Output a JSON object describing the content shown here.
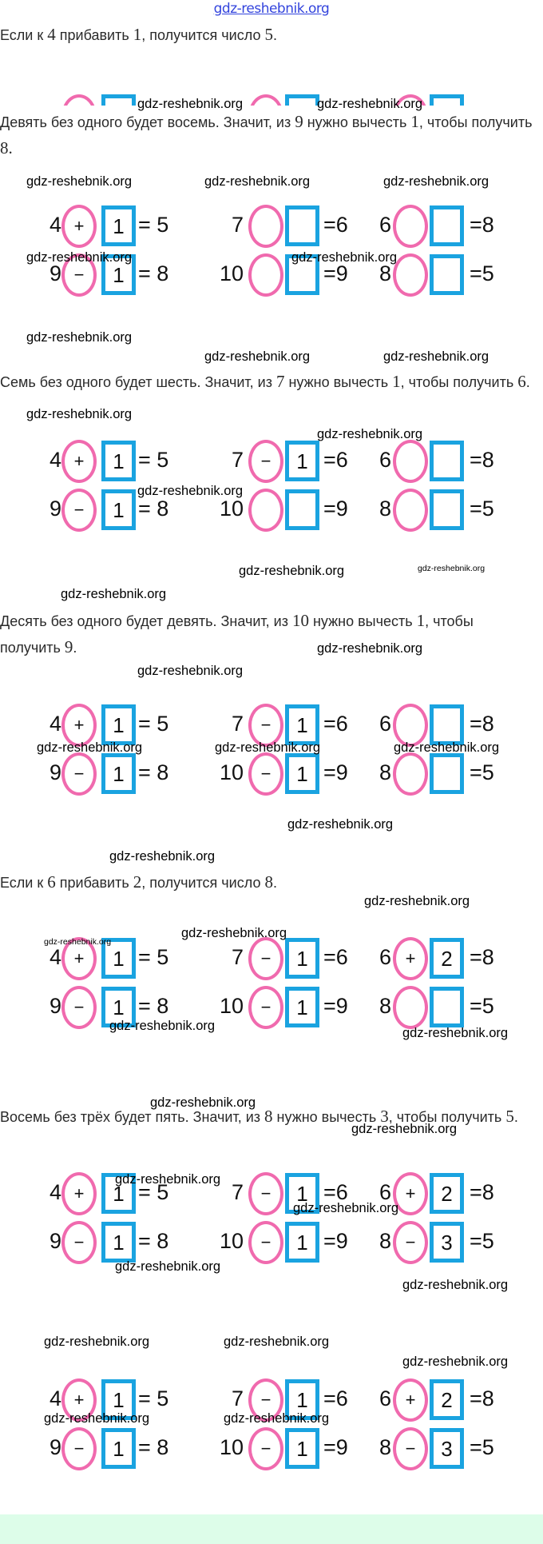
{
  "header": {
    "watermark": "gdz-reshebnik.org",
    "watermark_color": "#3344dd"
  },
  "watermark": "gdz-reshebnik.org",
  "colors": {
    "circle": "#f06aae",
    "square": "#1aa3e0",
    "footer": "#ddfde9"
  },
  "lines": [
    [
      {
        "t": "Если к "
      },
      {
        "t": "4",
        "m": 1
      },
      {
        "t": " прибавить "
      },
      {
        "t": "1",
        "m": 1
      },
      {
        "t": ", получится число "
      },
      {
        "t": "5",
        "m": 1
      },
      {
        "t": "."
      }
    ],
    [
      {
        "t": "Девять без одного будет восемь. Значит, из "
      },
      {
        "t": "9",
        "m": 1
      },
      {
        "t": " нужно вычесть "
      },
      {
        "t": "1",
        "m": 1
      },
      {
        "t": ", чтобы получить"
      }
    ],
    [
      {
        "t": "8.",
        "m": 1
      }
    ],
    [
      {
        "t": "Семь без одного будет шесть. Значит, из "
      },
      {
        "t": "7",
        "m": 1
      },
      {
        "t": " нужно вычесть "
      },
      {
        "t": "1",
        "m": 1
      },
      {
        "t": ", чтобы получить "
      },
      {
        "t": "6",
        "m": 1
      },
      {
        "t": "."
      }
    ],
    [
      {
        "t": "Десять без одного будет девять. Значит, из "
      },
      {
        "t": "10",
        "m": 1
      },
      {
        "t": " нужно вычесть "
      },
      {
        "t": "1",
        "m": 1
      },
      {
        "t": ", чтобы"
      }
    ],
    [
      {
        "t": "получить "
      },
      {
        "t": "9",
        "m": 1
      },
      {
        "t": "."
      }
    ],
    [
      {
        "t": "Если к "
      },
      {
        "t": "6",
        "m": 1
      },
      {
        "t": " прибавить "
      },
      {
        "t": "2",
        "m": 1
      },
      {
        "t": ", получится число "
      },
      {
        "t": "8",
        "m": 1
      },
      {
        "t": "."
      }
    ],
    [
      {
        "t": "Восемь без трёх будет пять. Значит, из "
      },
      {
        "t": "8",
        "m": 1
      },
      {
        "t": " нужно вычесть "
      },
      {
        "t": "3",
        "m": 1
      },
      {
        "t": ", чтобы получить "
      },
      {
        "t": "5",
        "m": 1
      },
      {
        "t": "."
      }
    ]
  ],
  "blocks": [
    [
      {
        "a": "4",
        "op": "+",
        "b": "1",
        "r": "= 5"
      },
      {
        "a": "7",
        "op": "",
        "b": "",
        "r": "=6"
      },
      {
        "a": "6",
        "op": "",
        "b": "",
        "r": "=8"
      },
      {
        "a": "9",
        "op": "−",
        "b": "1",
        "r": "= 8"
      },
      {
        "a": "10",
        "op": "",
        "b": "",
        "r": "=9"
      },
      {
        "a": "8",
        "op": "",
        "b": "",
        "r": "=5"
      }
    ],
    [
      {
        "a": "4",
        "op": "+",
        "b": "1",
        "r": "= 5"
      },
      {
        "a": "7",
        "op": "−",
        "b": "1",
        "r": "=6"
      },
      {
        "a": "6",
        "op": "",
        "b": "",
        "r": "=8"
      },
      {
        "a": "9",
        "op": "−",
        "b": "1",
        "r": "= 8"
      },
      {
        "a": "10",
        "op": "",
        "b": "",
        "r": "=9"
      },
      {
        "a": "8",
        "op": "",
        "b": "",
        "r": "=5"
      }
    ],
    [
      {
        "a": "4",
        "op": "+",
        "b": "1",
        "r": "= 5"
      },
      {
        "a": "7",
        "op": "−",
        "b": "1",
        "r": "=6"
      },
      {
        "a": "6",
        "op": "",
        "b": "",
        "r": "=8"
      },
      {
        "a": "9",
        "op": "−",
        "b": "1",
        "r": "= 8"
      },
      {
        "a": "10",
        "op": "−",
        "b": "1",
        "r": "=9"
      },
      {
        "a": "8",
        "op": "",
        "b": "",
        "r": "=5"
      }
    ],
    [
      {
        "a": "4",
        "op": "+",
        "b": "1",
        "r": "= 5"
      },
      {
        "a": "7",
        "op": "−",
        "b": "1",
        "r": "=6"
      },
      {
        "a": "6",
        "op": "+",
        "b": "2",
        "r": "=8"
      },
      {
        "a": "9",
        "op": "−",
        "b": "1",
        "r": "= 8"
      },
      {
        "a": "10",
        "op": "−",
        "b": "1",
        "r": "=9"
      },
      {
        "a": "8",
        "op": "",
        "b": "",
        "r": "=5"
      }
    ],
    [
      {
        "a": "4",
        "op": "+",
        "b": "1",
        "r": "= 5"
      },
      {
        "a": "7",
        "op": "−",
        "b": "1",
        "r": "=6"
      },
      {
        "a": "6",
        "op": "+",
        "b": "2",
        "r": "=8"
      },
      {
        "a": "9",
        "op": "−",
        "b": "1",
        "r": "= 8"
      },
      {
        "a": "10",
        "op": "−",
        "b": "1",
        "r": "=9"
      },
      {
        "a": "8",
        "op": "−",
        "b": "3",
        "r": "=5"
      }
    ],
    [
      {
        "a": "4",
        "op": "+",
        "b": "1",
        "r": "= 5"
      },
      {
        "a": "7",
        "op": "−",
        "b": "1",
        "r": "=6"
      },
      {
        "a": "6",
        "op": "+",
        "b": "2",
        "r": "=8"
      },
      {
        "a": "9",
        "op": "−",
        "b": "1",
        "r": "= 8"
      },
      {
        "a": "10",
        "op": "−",
        "b": "1",
        "r": "=9"
      },
      {
        "a": "8",
        "op": "−",
        "b": "3",
        "r": "=5"
      }
    ]
  ]
}
